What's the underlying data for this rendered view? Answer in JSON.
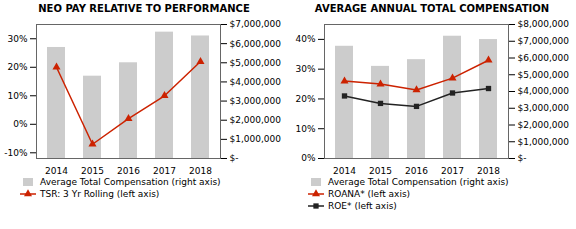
{
  "chart_data": [
    {
      "type": "bar",
      "title": "NEO PAY RELATIVE TO PERFORMANCE",
      "categories": [
        "2014",
        "2015",
        "2016",
        "2017",
        "2018"
      ],
      "series": [
        {
          "name": "Average Total Compensation (right axis)",
          "type": "bar",
          "axis": "y2",
          "color": "#cccccc",
          "values": [
            5800000,
            4300000,
            5000000,
            6600000,
            6400000
          ]
        },
        {
          "name": "TSR: 3 Yr Rolling (left axis)",
          "type": "line",
          "color": "#cc2200",
          "marker": "triangle",
          "values": [
            20,
            -7,
            2,
            10,
            22
          ]
        }
      ],
      "ylim": [
        -12,
        35
      ],
      "yticks": [
        {
          "value": -10,
          "label": "-10%"
        },
        {
          "value": 0,
          "label": "0%"
        },
        {
          "value": 10,
          "label": "10%"
        },
        {
          "value": 20,
          "label": "20%"
        },
        {
          "value": 30,
          "label": "30%"
        }
      ],
      "y2lim": [
        0,
        7000000
      ],
      "y2ticks": [
        {
          "value": 0,
          "label": "$-"
        },
        {
          "value": 1000000,
          "label": "$1,000,000"
        },
        {
          "value": 2000000,
          "label": "$2,000,000"
        },
        {
          "value": 3000000,
          "label": "$3,000,000"
        },
        {
          "value": 4000000,
          "label": "$4,000,000"
        },
        {
          "value": 5000000,
          "label": "$5,000,000"
        },
        {
          "value": 6000000,
          "label": "$6,000,000"
        },
        {
          "value": 7000000,
          "label": "$7,000,000"
        }
      ],
      "grid": false,
      "legend": "bottom"
    },
    {
      "type": "bar",
      "title": "AVERAGE ANNUAL TOTAL COMPENSATION",
      "categories": [
        "2014",
        "2015",
        "2016",
        "2017",
        "2018"
      ],
      "series": [
        {
          "name": "Average Total Compensation (right axis)",
          "type": "bar",
          "axis": "y2",
          "color": "#cccccc",
          "values": [
            6700000,
            5500000,
            5900000,
            7300000,
            7100000
          ]
        },
        {
          "name": "ROANA* (left axis)",
          "type": "line",
          "color": "#cc2200",
          "marker": "triangle",
          "values": [
            26,
            25,
            23,
            27,
            33
          ]
        },
        {
          "name": "ROE* (left axis)",
          "type": "line",
          "color": "#222222",
          "marker": "square",
          "values": [
            21,
            18.5,
            17.5,
            22,
            23.5
          ]
        }
      ],
      "ylim": [
        0,
        45
      ],
      "yticks": [
        {
          "value": 0,
          "label": "0%"
        },
        {
          "value": 10,
          "label": "10%"
        },
        {
          "value": 20,
          "label": "20%"
        },
        {
          "value": 30,
          "label": "30%"
        },
        {
          "value": 40,
          "label": "40%"
        }
      ],
      "y2lim": [
        0,
        8000000
      ],
      "y2ticks": [
        {
          "value": 0,
          "label": "$-"
        },
        {
          "value": 1000000,
          "label": "$1,000,000"
        },
        {
          "value": 2000000,
          "label": "$2,000,000"
        },
        {
          "value": 3000000,
          "label": "$3,000,000"
        },
        {
          "value": 4000000,
          "label": "$4,000,000"
        },
        {
          "value": 5000000,
          "label": "$5,000,000"
        },
        {
          "value": 6000000,
          "label": "$6,000,000"
        },
        {
          "value": 7000000,
          "label": "$7,000,000"
        },
        {
          "value": 8000000,
          "label": "$8,000,000"
        }
      ],
      "grid": false,
      "legend": "bottom"
    }
  ]
}
